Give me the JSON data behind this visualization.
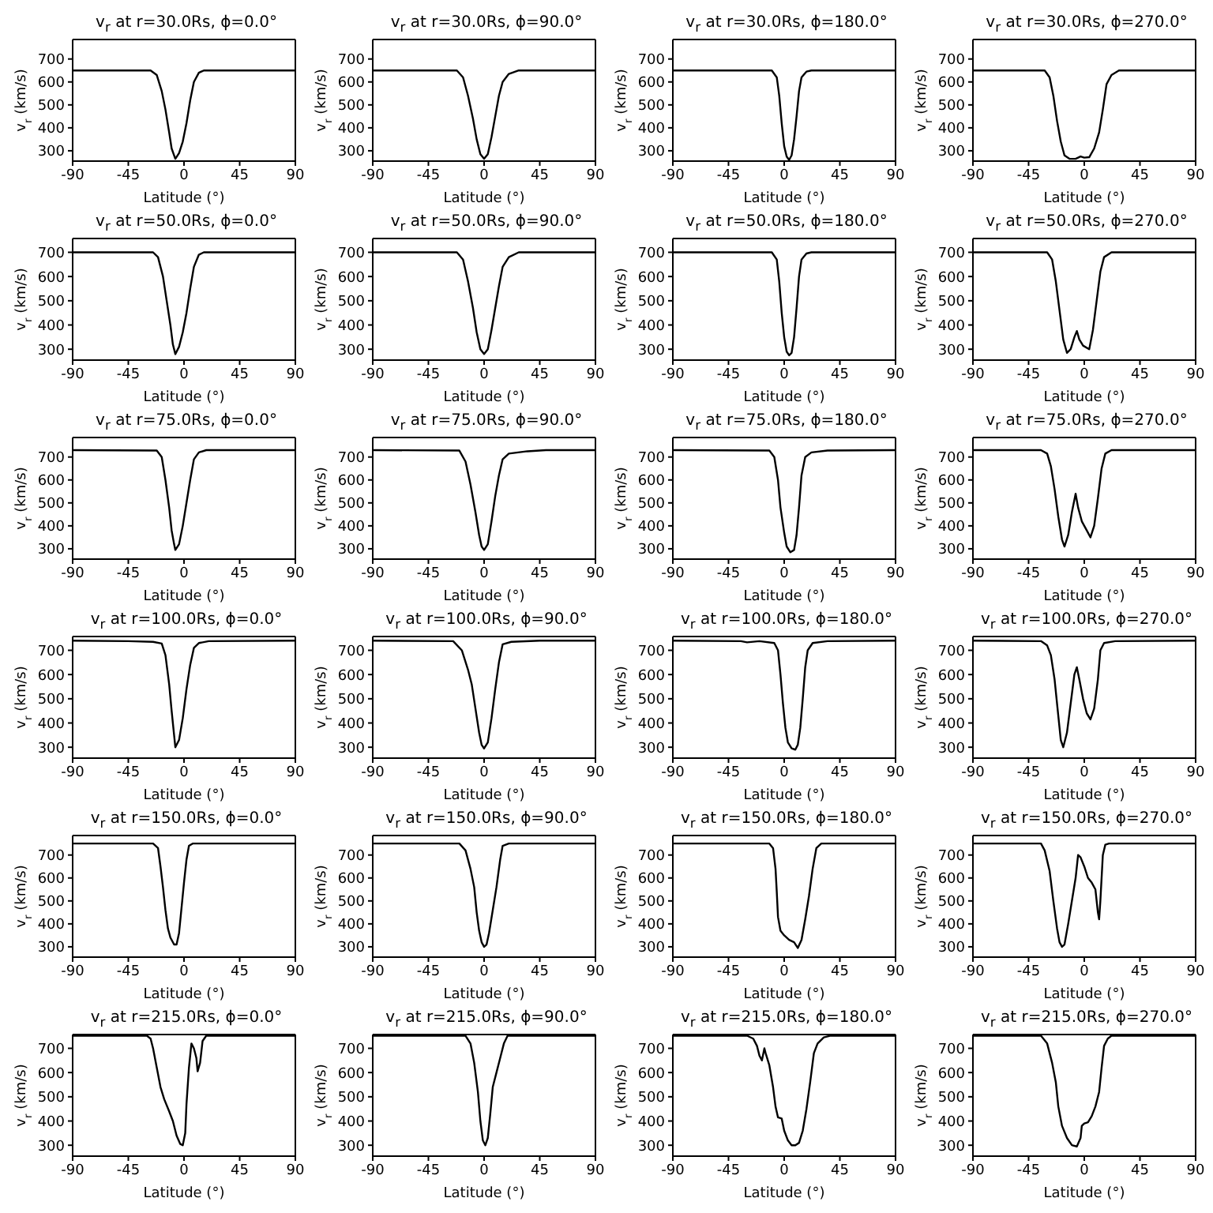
{
  "chart_data": [
    {
      "type": "line",
      "title": "v$_{r}$ at r=30.0Rs, ϕ=0.0°",
      "xlabel": "Latitude (°)",
      "ylabel": "v$_{r}$ (km/s)",
      "xlim": [
        -90,
        90
      ],
      "xticks": [
        -90,
        -45,
        0,
        45,
        90
      ],
      "ylim": [
        255,
        785
      ],
      "yticks": [
        300,
        400,
        500,
        600,
        700
      ],
      "series": [
        {
          "color": "#000000",
          "x": [
            -90,
            -27,
            -22,
            -18,
            -15,
            -12,
            -10,
            -7,
            -4,
            -1,
            2,
            5,
            8,
            12,
            16,
            90
          ],
          "values": [
            650,
            650,
            630,
            560,
            480,
            380,
            310,
            265,
            290,
            340,
            420,
            520,
            600,
            640,
            650,
            650
          ]
        }
      ]
    },
    {
      "type": "line",
      "title": "v$_{r}$ at r=30.0Rs, ϕ=90.0°",
      "xlabel": "Latitude (°)",
      "ylabel": "v$_{r}$ (km/s)",
      "xlim": [
        -90,
        90
      ],
      "xticks": [
        -90,
        -45,
        0,
        45,
        90
      ],
      "ylim": [
        255,
        785
      ],
      "yticks": [
        300,
        400,
        500,
        600,
        700
      ],
      "series": [
        {
          "color": "#000000",
          "x": [
            -90,
            -22,
            -17,
            -13,
            -9,
            -6,
            -3,
            0,
            3,
            6,
            9,
            12,
            15,
            20,
            28,
            90
          ],
          "values": [
            650,
            650,
            620,
            540,
            440,
            350,
            285,
            265,
            285,
            360,
            450,
            540,
            600,
            635,
            650,
            650
          ]
        }
      ]
    },
    {
      "type": "line",
      "title": "v$_{r}$ at r=30.0Rs, ϕ=180.0°",
      "xlabel": "Latitude (°)",
      "ylabel": "v$_{r}$ (km/s)",
      "xlim": [
        -90,
        90
      ],
      "xticks": [
        -90,
        -45,
        0,
        45,
        90
      ],
      "ylim": [
        255,
        785
      ],
      "yticks": [
        300,
        400,
        500,
        600,
        700
      ],
      "series": [
        {
          "color": "#000000",
          "x": [
            -90,
            -10,
            -6,
            -4,
            -2,
            0,
            2,
            4,
            6,
            8,
            10,
            12,
            14,
            18,
            22,
            90
          ],
          "values": [
            650,
            650,
            620,
            540,
            420,
            320,
            275,
            260,
            280,
            350,
            450,
            560,
            620,
            645,
            650,
            650
          ]
        }
      ]
    },
    {
      "type": "line",
      "title": "v$_{r}$ at r=30.0Rs, ϕ=270.0°",
      "xlabel": "Latitude (°)",
      "ylabel": "v$_{r}$ (km/s)",
      "xlim": [
        -90,
        90
      ],
      "xticks": [
        -90,
        -45,
        0,
        45,
        90
      ],
      "ylim": [
        255,
        785
      ],
      "yticks": [
        300,
        400,
        500,
        600,
        700
      ],
      "series": [
        {
          "color": "#000000",
          "x": [
            -90,
            -32,
            -28,
            -25,
            -22,
            -19,
            -16,
            -12,
            -7,
            -3,
            0,
            4,
            8,
            12,
            15,
            18,
            22,
            28,
            90
          ],
          "values": [
            650,
            650,
            620,
            540,
            430,
            340,
            280,
            265,
            265,
            275,
            270,
            272,
            310,
            380,
            480,
            590,
            630,
            650,
            650
          ]
        }
      ]
    },
    {
      "type": "line",
      "title": "v$_{r}$ at r=50.0Rs, ϕ=0.0°",
      "xlabel": "Latitude (°)",
      "ylabel": "v$_{r}$ (km/s)",
      "xlim": [
        -90,
        90
      ],
      "xticks": [
        -90,
        -45,
        0,
        45,
        90
      ],
      "ylim": [
        255,
        757
      ],
      "yticks": [
        300,
        400,
        500,
        600,
        700
      ],
      "series": [
        {
          "color": "#000000",
          "x": [
            -90,
            -25,
            -21,
            -17,
            -14,
            -11,
            -9,
            -7,
            -4,
            -1,
            2,
            5,
            8,
            12,
            16,
            90
          ],
          "values": [
            700,
            700,
            680,
            600,
            500,
            400,
            320,
            280,
            310,
            370,
            450,
            550,
            640,
            690,
            700,
            700
          ]
        }
      ]
    },
    {
      "type": "line",
      "title": "v$_{r}$ at r=50.0Rs, ϕ=90.0°",
      "xlabel": "Latitude (°)",
      "ylabel": "v$_{r}$ (km/s)",
      "xlim": [
        -90,
        90
      ],
      "xticks": [
        -90,
        -45,
        0,
        45,
        90
      ],
      "ylim": [
        255,
        757
      ],
      "yticks": [
        300,
        400,
        500,
        600,
        700
      ],
      "series": [
        {
          "color": "#000000",
          "x": [
            -90,
            -22,
            -17,
            -13,
            -9,
            -6,
            -3,
            0,
            3,
            6,
            9,
            12,
            15,
            20,
            28,
            90
          ],
          "values": [
            700,
            700,
            670,
            580,
            470,
            370,
            300,
            280,
            300,
            380,
            470,
            560,
            640,
            680,
            700,
            700
          ]
        }
      ]
    },
    {
      "type": "line",
      "title": "v$_{r}$ at r=50.0Rs, ϕ=180.0°",
      "xlabel": "Latitude (°)",
      "ylabel": "v$_{r}$ (km/s)",
      "xlim": [
        -90,
        90
      ],
      "xticks": [
        -90,
        -45,
        0,
        45,
        90
      ],
      "ylim": [
        255,
        757
      ],
      "yticks": [
        300,
        400,
        500,
        600,
        700
      ],
      "series": [
        {
          "color": "#000000",
          "x": [
            -90,
            -10,
            -6,
            -4,
            -2,
            0,
            2,
            4,
            6,
            8,
            10,
            12,
            14,
            18,
            22,
            90
          ],
          "values": [
            700,
            700,
            670,
            580,
            450,
            350,
            290,
            275,
            285,
            350,
            470,
            600,
            670,
            695,
            700,
            700
          ]
        }
      ]
    },
    {
      "type": "line",
      "title": "v$_{r}$ at r=50.0Rs, ϕ=270.0°",
      "xlabel": "Latitude (°)",
      "ylabel": "v$_{r}$ (km/s)",
      "xlim": [
        -90,
        90
      ],
      "xticks": [
        -90,
        -45,
        0,
        45,
        90
      ],
      "ylim": [
        255,
        757
      ],
      "yticks": [
        300,
        400,
        500,
        600,
        700
      ],
      "series": [
        {
          "color": "#000000",
          "x": [
            -90,
            -30,
            -26,
            -23,
            -20,
            -17,
            -14,
            -11,
            -8,
            -6,
            -4,
            -1,
            4,
            7,
            10,
            13,
            16,
            22,
            90
          ],
          "values": [
            700,
            700,
            670,
            580,
            460,
            340,
            285,
            300,
            350,
            375,
            340,
            315,
            300,
            380,
            500,
            620,
            680,
            700,
            700
          ]
        }
      ]
    },
    {
      "type": "line",
      "title": "v$_{r}$ at r=75.0Rs, ϕ=0.0°",
      "xlabel": "Latitude (°)",
      "ylabel": "v$_{r}$ (km/s)",
      "xlim": [
        -90,
        90
      ],
      "xticks": [
        -90,
        -45,
        0,
        45,
        90
      ],
      "ylim": [
        255,
        785
      ],
      "yticks": [
        300,
        400,
        500,
        600,
        700
      ],
      "series": [
        {
          "color": "#000000",
          "x": [
            -90,
            -22,
            -18,
            -15,
            -12,
            -10,
            -8,
            -7,
            -4,
            -1,
            2,
            5,
            8,
            12,
            18,
            90
          ],
          "values": [
            730,
            728,
            700,
            600,
            480,
            380,
            320,
            295,
            320,
            400,
            500,
            600,
            690,
            720,
            730,
            730
          ]
        }
      ]
    },
    {
      "type": "line",
      "title": "v$_{r}$ at r=75.0Rs, ϕ=90.0°",
      "xlabel": "Latitude (°)",
      "ylabel": "v$_{r}$ (km/s)",
      "xlim": [
        -90,
        90
      ],
      "xticks": [
        -90,
        -45,
        0,
        45,
        90
      ],
      "ylim": [
        255,
        785
      ],
      "yticks": [
        300,
        400,
        500,
        600,
        700
      ],
      "series": [
        {
          "color": "#000000",
          "x": [
            -90,
            -20,
            -15,
            -11,
            -7,
            -4,
            -2,
            0,
            3,
            6,
            9,
            12,
            15,
            20,
            35,
            50,
            90
          ],
          "values": [
            730,
            728,
            680,
            580,
            460,
            360,
            310,
            295,
            320,
            420,
            530,
            620,
            690,
            715,
            725,
            730,
            730
          ]
        }
      ]
    },
    {
      "type": "line",
      "title": "v$_{r}$ at r=75.0Rs, ϕ=180.0°",
      "xlabel": "Latitude (°)",
      "ylabel": "v$_{r}$ (km/s)",
      "xlim": [
        -90,
        90
      ],
      "xticks": [
        -90,
        -45,
        0,
        45,
        90
      ],
      "ylim": [
        255,
        785
      ],
      "yticks": [
        300,
        400,
        500,
        600,
        700
      ],
      "series": [
        {
          "color": "#000000",
          "x": [
            -90,
            -12,
            -8,
            -5,
            -3,
            0,
            2,
            5,
            8,
            10,
            12,
            14,
            17,
            22,
            35,
            90
          ],
          "values": [
            730,
            728,
            700,
            600,
            480,
            370,
            310,
            285,
            295,
            360,
            480,
            620,
            700,
            720,
            728,
            730
          ]
        }
      ]
    },
    {
      "type": "line",
      "title": "v$_{r}$ at r=75.0Rs, ϕ=270.0°",
      "xlabel": "Latitude (°)",
      "ylabel": "v$_{r}$ (km/s)",
      "xlim": [
        -90,
        90
      ],
      "xticks": [
        -90,
        -45,
        0,
        45,
        90
      ],
      "ylim": [
        255,
        785
      ],
      "yticks": [
        300,
        400,
        500,
        600,
        700
      ],
      "series": [
        {
          "color": "#000000",
          "x": [
            -90,
            -35,
            -30,
            -27,
            -24,
            -21,
            -18,
            -16,
            -13,
            -10,
            -7,
            -5,
            -2,
            2,
            5,
            8,
            11,
            14,
            17,
            22,
            90
          ],
          "values": [
            730,
            730,
            715,
            660,
            560,
            440,
            340,
            310,
            360,
            460,
            540,
            480,
            420,
            380,
            350,
            400,
            520,
            650,
            715,
            730,
            730
          ]
        }
      ]
    },
    {
      "type": "line",
      "title": "v$_{r}$ at r=100.0Rs, ϕ=0.0°",
      "xlabel": "Latitude (°)",
      "ylabel": "v$_{r}$ (km/s)",
      "xlim": [
        -90,
        90
      ],
      "xticks": [
        -90,
        -45,
        0,
        45,
        90
      ],
      "ylim": [
        255,
        757
      ],
      "yticks": [
        300,
        400,
        500,
        600,
        700
      ],
      "series": [
        {
          "color": "#000000",
          "x": [
            -90,
            -45,
            -25,
            -18,
            -15,
            -12,
            -10,
            -8,
            -7,
            -4,
            -1,
            2,
            5,
            8,
            12,
            20,
            90
          ],
          "values": [
            740,
            738,
            735,
            728,
            680,
            560,
            450,
            350,
            300,
            330,
            420,
            540,
            640,
            710,
            730,
            738,
            740
          ]
        }
      ]
    },
    {
      "type": "line",
      "title": "v$_{r}$ at r=100.0Rs, ϕ=90.0°",
      "xlabel": "Latitude (°)",
      "ylabel": "v$_{r}$ (km/s)",
      "xlim": [
        -90,
        90
      ],
      "xticks": [
        -90,
        -45,
        0,
        45,
        90
      ],
      "ylim": [
        255,
        757
      ],
      "yticks": [
        300,
        400,
        500,
        600,
        700
      ],
      "series": [
        {
          "color": "#000000",
          "x": [
            -90,
            -25,
            -18,
            -13,
            -10,
            -7,
            -4,
            -2,
            0,
            3,
            6,
            9,
            12,
            15,
            22,
            45,
            90
          ],
          "values": [
            740,
            738,
            700,
            620,
            560,
            460,
            360,
            310,
            295,
            320,
            420,
            540,
            650,
            725,
            735,
            740,
            740
          ]
        }
      ]
    },
    {
      "type": "line",
      "title": "v$_{r}$ at r=100.0Rs, ϕ=180.0°",
      "xlabel": "Latitude (°)",
      "ylabel": "v$_{r}$ (km/s)",
      "xlim": [
        -90,
        90
      ],
      "xticks": [
        -90,
        -45,
        0,
        45,
        90
      ],
      "ylim": [
        255,
        757
      ],
      "yticks": [
        300,
        400,
        500,
        600,
        700
      ],
      "series": [
        {
          "color": "#000000",
          "x": [
            -90,
            -35,
            -30,
            -20,
            -8,
            -5,
            -3,
            -1,
            1,
            3,
            6,
            9,
            11,
            13,
            15,
            17,
            19,
            23,
            35,
            90
          ],
          "values": [
            740,
            738,
            733,
            738,
            730,
            700,
            600,
            480,
            380,
            320,
            295,
            290,
            310,
            380,
            500,
            630,
            700,
            730,
            738,
            740
          ]
        }
      ]
    },
    {
      "type": "line",
      "title": "v$_{r}$ at r=100.0Rs, ϕ=270.0°",
      "xlabel": "Latitude (°)",
      "ylabel": "v$_{r}$ (km/s)",
      "xlim": [
        -90,
        90
      ],
      "xticks": [
        -90,
        -45,
        0,
        45,
        90
      ],
      "ylim": [
        255,
        757
      ],
      "yticks": [
        300,
        400,
        500,
        600,
        700
      ],
      "series": [
        {
          "color": "#000000",
          "x": [
            -90,
            -35,
            -30,
            -27,
            -24,
            -21,
            -19,
            -17,
            -14,
            -11,
            -8,
            -6,
            -4,
            -1,
            2,
            5,
            8,
            11,
            13,
            16,
            25,
            90
          ],
          "values": [
            740,
            738,
            720,
            680,
            580,
            430,
            330,
            300,
            360,
            480,
            600,
            630,
            580,
            500,
            440,
            415,
            460,
            580,
            700,
            730,
            738,
            740
          ]
        }
      ]
    },
    {
      "type": "line",
      "title": "v$_{r}$ at r=150.0Rs, ϕ=0.0°",
      "xlabel": "Latitude (°)",
      "ylabel": "v$_{r}$ (km/s)",
      "xlim": [
        -90,
        90
      ],
      "xticks": [
        -90,
        -45,
        0,
        45,
        90
      ],
      "ylim": [
        255,
        785
      ],
      "yticks": [
        300,
        400,
        500,
        600,
        700
      ],
      "series": [
        {
          "color": "#000000",
          "x": [
            -90,
            -25,
            -21,
            -19,
            -17,
            -15,
            -13,
            -11,
            -8,
            -6,
            -4,
            -2,
            0,
            2,
            4,
            7,
            90
          ],
          "values": [
            750,
            750,
            730,
            650,
            560,
            460,
            380,
            340,
            310,
            310,
            360,
            470,
            580,
            680,
            740,
            750,
            750
          ]
        }
      ]
    },
    {
      "type": "line",
      "title": "v$_{r}$ at r=150.0Rs, ϕ=90.0°",
      "xlabel": "Latitude (°)",
      "ylabel": "v$_{r}$ (km/s)",
      "xlim": [
        -90,
        90
      ],
      "xticks": [
        -90,
        -45,
        0,
        45,
        90
      ],
      "ylim": [
        255,
        785
      ],
      "yticks": [
        300,
        400,
        500,
        600,
        700
      ],
      "series": [
        {
          "color": "#000000",
          "x": [
            -90,
            -20,
            -15,
            -11,
            -8,
            -6,
            -4,
            -2,
            0,
            2,
            4,
            7,
            10,
            13,
            15,
            20,
            90
          ],
          "values": [
            750,
            750,
            720,
            640,
            560,
            450,
            370,
            320,
            300,
            310,
            360,
            460,
            560,
            680,
            740,
            750,
            750
          ]
        }
      ]
    },
    {
      "type": "line",
      "title": "v$_{r}$ at r=150.0Rs, ϕ=180.0°",
      "xlabel": "Latitude (°)",
      "ylabel": "v$_{r}$ (km/s)",
      "xlim": [
        -90,
        90
      ],
      "xticks": [
        -90,
        -45,
        0,
        45,
        90
      ],
      "ylim": [
        255,
        785
      ],
      "yticks": [
        300,
        400,
        500,
        600,
        700
      ],
      "series": [
        {
          "color": "#000000",
          "x": [
            -90,
            -12,
            -9,
            -7,
            -6,
            -5,
            -3,
            0,
            4,
            8,
            11,
            14,
            17,
            20,
            23,
            26,
            30,
            90
          ],
          "values": [
            750,
            750,
            730,
            640,
            540,
            430,
            370,
            350,
            330,
            320,
            295,
            330,
            420,
            520,
            640,
            730,
            750,
            750
          ]
        }
      ]
    },
    {
      "type": "line",
      "title": "v$_{r}$ at r=150.0Rs, ϕ=270.0°",
      "xlabel": "Latitude (°)",
      "ylabel": "v$_{r}$ (km/s)",
      "xlim": [
        -90,
        90
      ],
      "xticks": [
        -90,
        -45,
        0,
        45,
        90
      ],
      "ylim": [
        255,
        785
      ],
      "yticks": [
        300,
        400,
        500,
        600,
        700
      ],
      "series": [
        {
          "color": "#000000",
          "x": [
            -90,
            -35,
            -32,
            -28,
            -25,
            -22,
            -20,
            -18,
            -16,
            -13,
            -10,
            -7,
            -5,
            -3,
            0,
            3,
            6,
            9,
            11,
            12,
            13,
            15,
            17,
            20,
            90
          ],
          "values": [
            750,
            750,
            720,
            630,
            500,
            380,
            320,
            300,
            310,
            400,
            500,
            600,
            700,
            690,
            650,
            600,
            580,
            550,
            450,
            420,
            500,
            700,
            745,
            750,
            750
          ]
        }
      ]
    },
    {
      "type": "line",
      "title": "v$_{r}$ at r=215.0Rs, ϕ=0.0°",
      "xlabel": "Latitude (°)",
      "ylabel": "v$_{r}$ (km/s)",
      "xlim": [
        -90,
        90
      ],
      "xticks": [
        -90,
        -45,
        0,
        45,
        90
      ],
      "ylim": [
        255,
        757
      ],
      "yticks": [
        300,
        400,
        500,
        600,
        700
      ],
      "series": [
        {
          "color": "#000000",
          "x": [
            -90,
            -30,
            -27,
            -25,
            -22,
            -19,
            -16,
            -12,
            -9,
            -6,
            -3,
            -1,
            1,
            2,
            4,
            6,
            8,
            10,
            11,
            13,
            15,
            18,
            90
          ],
          "values": [
            752,
            752,
            740,
            700,
            620,
            540,
            490,
            440,
            400,
            340,
            305,
            300,
            350,
            470,
            620,
            720,
            700,
            660,
            605,
            640,
            730,
            752,
            752
          ]
        }
      ]
    },
    {
      "type": "line",
      "title": "v$_{r}$ at r=215.0Rs, ϕ=90.0°",
      "xlabel": "Latitude (°)",
      "ylabel": "v$_{r}$ (km/s)",
      "xlim": [
        -90,
        90
      ],
      "xticks": [
        -90,
        -45,
        0,
        45,
        90
      ],
      "ylim": [
        255,
        757
      ],
      "yticks": [
        300,
        400,
        500,
        600,
        700
      ],
      "series": [
        {
          "color": "#000000",
          "x": [
            -90,
            -15,
            -11,
            -8,
            -5,
            -3,
            -1,
            1,
            3,
            5,
            7,
            10,
            13,
            16,
            19,
            90
          ],
          "values": [
            752,
            752,
            720,
            640,
            520,
            400,
            320,
            300,
            330,
            430,
            540,
            600,
            660,
            720,
            752,
            752
          ]
        }
      ]
    },
    {
      "type": "line",
      "title": "v$_{r}$ at r=215.0Rs, ϕ=180.0°",
      "xlabel": "Latitude (°)",
      "ylabel": "v$_{r}$ (km/s)",
      "xlim": [
        -90,
        90
      ],
      "xticks": [
        -90,
        -45,
        0,
        45,
        90
      ],
      "ylim": [
        255,
        757
      ],
      "yticks": [
        300,
        400,
        500,
        600,
        700
      ],
      "series": [
        {
          "color": "#000000",
          "x": [
            -90,
            -30,
            -25,
            -22,
            -20,
            -18,
            -16,
            -15,
            -12,
            -9,
            -7,
            -5,
            -2,
            0,
            3,
            6,
            9,
            12,
            15,
            18,
            21,
            24,
            27,
            32,
            37,
            90
          ],
          "values": [
            752,
            752,
            740,
            710,
            670,
            650,
            700,
            680,
            630,
            540,
            460,
            415,
            410,
            360,
            320,
            300,
            300,
            310,
            360,
            450,
            560,
            680,
            720,
            745,
            752,
            752
          ]
        }
      ]
    },
    {
      "type": "line",
      "title": "v$_{r}$ at r=215.0Rs, ϕ=270.0°",
      "xlabel": "Latitude (°)",
      "ylabel": "v$_{r}$ (km/s)",
      "xlim": [
        -90,
        90
      ],
      "xticks": [
        -90,
        -45,
        0,
        45,
        90
      ],
      "ylim": [
        255,
        757
      ],
      "yticks": [
        300,
        400,
        500,
        600,
        700
      ],
      "series": [
        {
          "color": "#000000",
          "x": [
            -90,
            -35,
            -30,
            -26,
            -23,
            -21,
            -18,
            -14,
            -10,
            -6,
            -3,
            -2,
            0,
            3,
            6,
            9,
            12,
            14,
            16,
            19,
            22,
            90
          ],
          "values": [
            752,
            752,
            720,
            640,
            560,
            460,
            380,
            330,
            300,
            295,
            330,
            380,
            390,
            395,
            420,
            460,
            520,
            620,
            710,
            740,
            752,
            752
          ]
        }
      ]
    }
  ]
}
